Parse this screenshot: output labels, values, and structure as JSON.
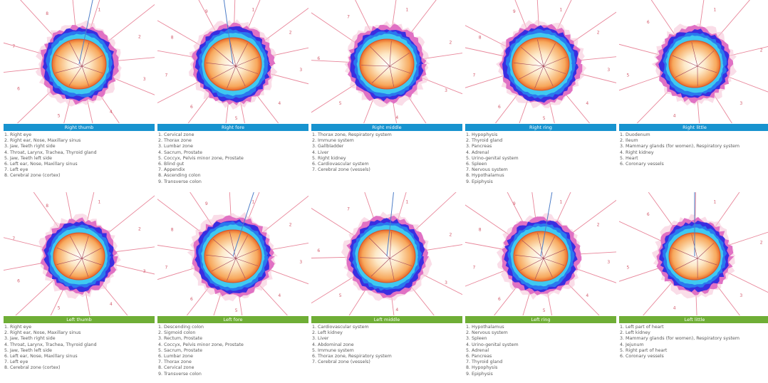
{
  "colors": {
    "right_band": "#1793cf",
    "left_band": "#6fae36",
    "radial_line": "#e8869a",
    "main_axis": "#4e7ec8"
  },
  "panels": [
    {
      "id": "right-thumb",
      "side": "right",
      "title": "Right thumb",
      "sector_numbers": [
        "1",
        "2",
        "3",
        "4",
        "5",
        "6",
        "7",
        "8"
      ],
      "zones": [
        "1. Right eye",
        "2. Right ear, Nose, Maxillary sinus",
        "3. Jaw, Teeth right side",
        "4. Throat, Larynx, Trachea, Thyroid gland",
        "5. Jaw, Teeth left side",
        "6. Left ear, Nose, Maxillary sinus",
        "7. Left eye",
        "8. Cerebral zone (cortex)"
      ]
    },
    {
      "id": "right-fore",
      "side": "right",
      "title": "Right fore",
      "sector_numbers": [
        "1",
        "2",
        "3",
        "4",
        "5",
        "6",
        "7",
        "8",
        "9"
      ],
      "zones": [
        "1. Cervical zone",
        "2. Thorax zone",
        "3. Lumbar zone",
        "4. Sacrum, Prostate",
        "5. Coccyx, Pelvis minor zone, Prostate",
        "6. Blind gut",
        "7. Appendix",
        "8. Ascending colon",
        "9. Transverse colon"
      ]
    },
    {
      "id": "right-middle",
      "side": "right",
      "title": "Right middle",
      "sector_numbers": [
        "1",
        "2",
        "3",
        "4",
        "5",
        "6",
        "7"
      ],
      "zones": [
        "1. Thorax zone, Respiratory system",
        "2. Immune system",
        "3. Gallbladder",
        "4. Liver",
        "5. Right kidney",
        "6. Cardiovascular system",
        "7. Cerebral zone (vessels)"
      ]
    },
    {
      "id": "right-ring",
      "side": "right",
      "title": "Right ring",
      "sector_numbers": [
        "1",
        "2",
        "3",
        "4",
        "5",
        "6",
        "7",
        "8",
        "9"
      ],
      "zones": [
        "1. Hypophysis",
        "2. Thyroid gland",
        "3. Pancreas",
        "4. Adrenal",
        "5. Urino-genital system",
        "6. Spleen",
        "7. Nervous system",
        "8. Hypothalamus",
        "9. Epiphysis"
      ]
    },
    {
      "id": "right-little",
      "side": "right",
      "title": "Right little",
      "sector_numbers": [
        "1",
        "2",
        "3",
        "4",
        "5",
        "6"
      ],
      "zones": [
        "1. Duodenum",
        "2. Ileum",
        "3. Mammary glands (for women), Respiratory system",
        "4. Right kidney",
        "5. Heart",
        "6. Coronary vessels"
      ]
    },
    {
      "id": "left-thumb",
      "side": "left",
      "title": "Left thumb",
      "sector_numbers": [
        "1",
        "2",
        "3",
        "4",
        "5",
        "6",
        "7",
        "8"
      ],
      "zones": [
        "1. Right eye",
        "2. Right ear, Nose, Maxillary sinus",
        "3. Jaw, Teeth right side",
        "4. Throat, Larynx, Trachea, Thyroid gland",
        "5. Jaw, Teeth left side",
        "6. Left ear, Nose, Maxillary sinus",
        "7. Left eye",
        "8. Cerebral zone (cortex)"
      ]
    },
    {
      "id": "left-fore",
      "side": "left",
      "title": "Left fore",
      "sector_numbers": [
        "1",
        "2",
        "3",
        "4",
        "5",
        "6",
        "7",
        "8",
        "9"
      ],
      "zones": [
        "1. Descending colon",
        "2. Sigmoid colon",
        "3. Rectum, Prostate",
        "4. Coccyx, Pelvis minor zone, Prostate",
        "5. Sacrum, Prostate",
        "6. Lumbar zone",
        "7. Thorax zone",
        "8. Cervical zone",
        "9. Transverse colon"
      ]
    },
    {
      "id": "left-middle",
      "side": "left",
      "title": "Left middle",
      "sector_numbers": [
        "1",
        "2",
        "3",
        "4",
        "5",
        "6",
        "7"
      ],
      "zones": [
        "1. Cardiovascular system",
        "2. Left kidney",
        "3. Liver",
        "4. Abdominal zone",
        "5. Immune system",
        "6. Thorax zone, Respiratory system",
        "7. Cerebral zone (vessels)"
      ]
    },
    {
      "id": "left-ring",
      "side": "left",
      "title": "Left ring",
      "sector_numbers": [
        "1",
        "2",
        "3",
        "4",
        "5",
        "6",
        "7",
        "8",
        "9"
      ],
      "zones": [
        "1. Hypothalamus",
        "2. Nervous system",
        "3. Spleen",
        "4. Urino-genital system",
        "5. Adrenal",
        "6. Pancreas",
        "7. Thyroid gland",
        "8. Hypophysis",
        "9. Epiphysis"
      ]
    },
    {
      "id": "left-little",
      "side": "left",
      "title": "Left little",
      "sector_numbers": [
        "1",
        "2",
        "3",
        "4",
        "5",
        "6"
      ],
      "zones": [
        "1. Left part of heart",
        "2. Left kidney",
        "3. Mammary glands (for women), Respiratory system",
        "4. Jejunum",
        "5. Right part of heart",
        "6. Coronary vessels"
      ]
    }
  ]
}
